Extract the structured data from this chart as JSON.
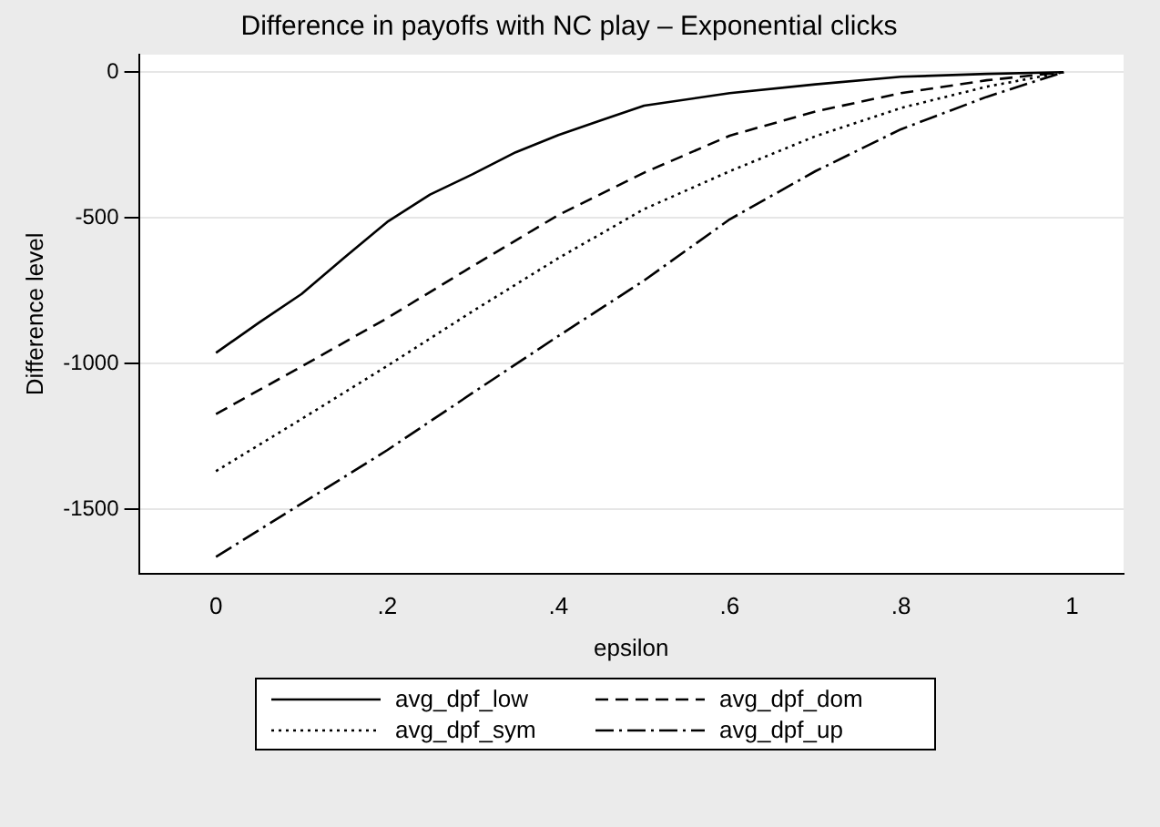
{
  "chart_data": {
    "type": "line",
    "title": "Difference in payoffs with NC play – Exponential clicks",
    "xlabel": "epsilon",
    "ylabel": "Difference level",
    "xlim": [
      -0.09,
      1.06
    ],
    "xticks": [
      0,
      {
        "value": 0.2,
        "label": ".2"
      },
      {
        "value": 0.4,
        "label": ".4"
      },
      {
        "value": 0.6,
        "label": ".6"
      },
      {
        "value": 0.8,
        "label": ".8"
      },
      1
    ],
    "ylim": [
      -1720,
      60
    ],
    "yticks": [
      0,
      -500,
      -1000,
      -1500
    ],
    "grid": "y",
    "legend": "bottom",
    "marker": "none",
    "series": [
      {
        "name": "avg_dpf_low",
        "color": "#000000",
        "line_style": "solid",
        "x": [
          0,
          0.05,
          0.1,
          0.15,
          0.2,
          0.25,
          0.3,
          0.35,
          0.4,
          0.45,
          0.5,
          0.6,
          0.7,
          0.8,
          0.9,
          0.99
        ],
        "values": [
          -963,
          -860,
          -761,
          -636,
          -514,
          -420,
          -350,
          -275,
          -216,
          -165,
          -115,
          -72,
          -42,
          -16,
          -6,
          0
        ]
      },
      {
        "name": "avg_dpf_dom",
        "color": "#000000",
        "line_style": "dashed",
        "x": [
          0,
          0.1,
          0.2,
          0.3,
          0.4,
          0.5,
          0.6,
          0.7,
          0.8,
          0.9,
          0.99
        ],
        "values": [
          -1173,
          -1010,
          -844,
          -665,
          -490,
          -345,
          -218,
          -135,
          -72,
          -28,
          0
        ]
      },
      {
        "name": "avg_dpf_sym",
        "color": "#000000",
        "line_style": "dotted",
        "x": [
          0,
          0.1,
          0.2,
          0.3,
          0.4,
          0.5,
          0.6,
          0.7,
          0.8,
          0.9,
          0.99
        ],
        "values": [
          -1369,
          -1190,
          -1008,
          -820,
          -638,
          -470,
          -340,
          -220,
          -123,
          -50,
          0
        ]
      },
      {
        "name": "avg_dpf_up",
        "color": "#000000",
        "line_style": "dashdot",
        "x": [
          0,
          0.1,
          0.2,
          0.3,
          0.4,
          0.5,
          0.6,
          0.7,
          0.8,
          0.9,
          0.99
        ],
        "values": [
          -1663,
          -1480,
          -1297,
          -1100,
          -905,
          -715,
          -505,
          -340,
          -196,
          -85,
          0
        ]
      }
    ]
  }
}
